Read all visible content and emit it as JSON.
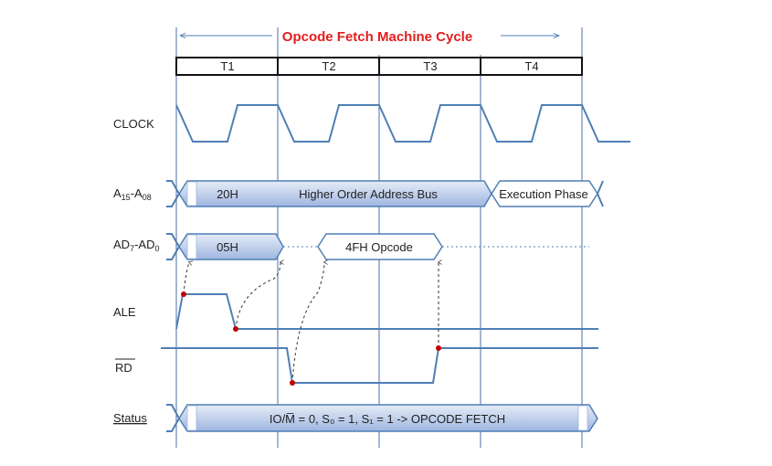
{
  "title": "Opcode Fetch Machine Cycle",
  "states": [
    "T1",
    "T2",
    "T3",
    "T4"
  ],
  "signals": {
    "clock": "CLOCK",
    "addr_high": {
      "main": "A",
      "sub1": "15",
      "sep": "-A",
      "sub2": "08"
    },
    "addr_low": {
      "main": "AD",
      "sub1": "7",
      "sep": "-AD",
      "sub2": "0"
    },
    "ale": "ALE",
    "rd": "RD",
    "status": "Status"
  },
  "buses": {
    "addr_high_value": "20H",
    "addr_high_desc": "Higher Order Address Bus",
    "execution": "Execution Phase",
    "addr_low_value": "05H",
    "opcode": "4FH  Opcode",
    "status_text": "IO/M̅ = 0, S₀ = 1, S₁ = 1 -> OPCODE FETCH"
  },
  "colors": {
    "title": "#e21e1e",
    "signal": "#4f7fb5",
    "bus_fill_top": "#dfe7f5",
    "bus_fill_bottom": "#a9bde3",
    "marker": "#c00000",
    "link": "#1f3fbf"
  }
}
